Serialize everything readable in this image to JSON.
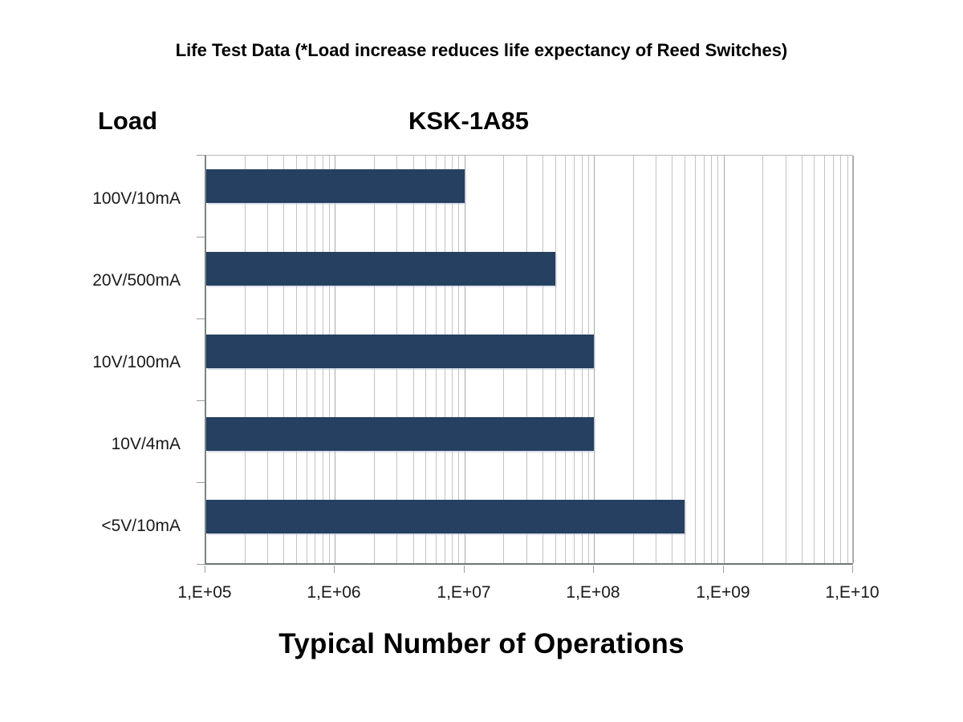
{
  "page_title": "Life Test Data (*Load increase reduces life expectancy of Reed Switches)",
  "chart": {
    "load_header": "Load",
    "series_title": "KSK-1A85",
    "x_axis_title": "Typical Number of Operations"
  },
  "chart_data": {
    "type": "bar",
    "orientation": "horizontal",
    "title": "KSK-1A85",
    "categories": [
      "100V/10mA",
      "20V/500mA",
      "10V/100mA",
      "10V/4mA",
      "<5V/10mA"
    ],
    "values": [
      10000000,
      50000000,
      100000000,
      100000000,
      500000000
    ],
    "xlabel": "Typical Number of Operations",
    "ylabel": "Load",
    "x_scale": "log",
    "xlim": [
      100000,
      10000000000
    ],
    "x_tick_labels": [
      "1,E+05",
      "1,E+06",
      "1,E+07",
      "1,E+08",
      "1,E+09",
      "1,E+10"
    ],
    "grid": "vertical-log-major-and-minor",
    "legend": "none",
    "bar_color": "#254060",
    "gridline_major_color": "#a9a9a9",
    "gridline_minor_color": "#c3c3c3",
    "axis_line_color": "#7d8383"
  }
}
